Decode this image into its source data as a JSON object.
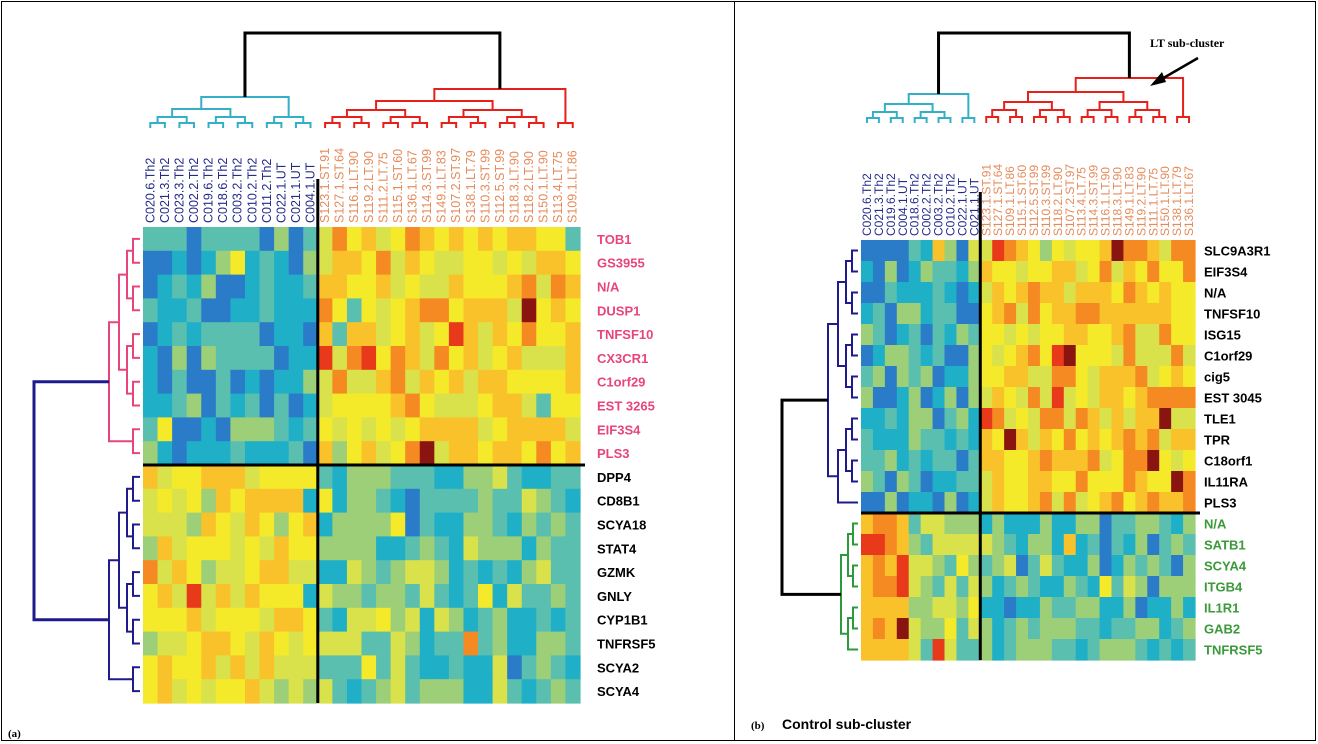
{
  "panels": {
    "a": {
      "letter": "(a)"
    },
    "b": {
      "letter": "(b)",
      "caption": "Control sub-cluster",
      "annotation": "LT sub-cluster"
    }
  },
  "colors": {
    "blue_dendro": "#1f1b8c",
    "cyan_dendro": "#33b0c8",
    "red_dendro": "#e8201a",
    "pink_dendro": "#e8457a",
    "green_dendro": "#2a9a3a",
    "control_label": "#232b8a",
    "lt_label": "#e58a5a",
    "pink_label": "#e8457a",
    "green_label": "#3a9a3a",
    "black_label": "#000000"
  },
  "chart_data": [
    {
      "type": "heatmap",
      "panel": "a",
      "columns_left": [
        "C020.6.Th2",
        "C021.3.Th2",
        "C023.3.Th2",
        "C002.2.Th2",
        "C019.6.Th2",
        "C018.6.Th2",
        "C003.2.Th2",
        "C010.2.Th2",
        "C011.2.Th2",
        "C022.1.UT",
        "C021.1.UT",
        "C004.1.UT"
      ],
      "columns_right": [
        "S123.1.ST.91",
        "S127.1.ST.64",
        "S116.1.LT.90",
        "S119.2.LT.90",
        "S111.2.LT.75",
        "S115.1.ST.60",
        "S136.1.LT.67",
        "S114.3.ST.99",
        "S149.1.LT.83",
        "S107.2.ST.97",
        "S138.1.LT.79",
        "S110.3.ST.99",
        "S112.5.ST.99",
        "S118.3.LT.90",
        "S118.2.LT.90",
        "S150.1.LT.90",
        "S113.4.LT.75",
        "S109.1.LT.86"
      ],
      "rows_top": [
        "TOB1",
        "GS3955",
        "N/A",
        "DUSP1",
        "TNFSF10",
        "CX3CR1",
        "C1orf29",
        "EST 3265",
        "EIF3S4",
        "PLS3"
      ],
      "rows_bottom": [
        "DPP4",
        "CD8B1",
        "SCYA18",
        "STAT4",
        "GZMK",
        "GNLY",
        "CYP1B1",
        "TNFRSF5",
        "SCYA2",
        "SCYA4"
      ],
      "color_scale": [
        "#2a7bc8",
        "#1fb0c8",
        "#5bbfb0",
        "#9ccf78",
        "#d9e24a",
        "#f5ea2a",
        "#f9c22a",
        "#f58a22",
        "#e83a1a",
        "#8a1410"
      ]
    },
    {
      "type": "heatmap",
      "panel": "b",
      "columns_left": [
        "C020.6.Th2",
        "C021.3.Th2",
        "C019.6.Th2",
        "C004.1.UT",
        "C018.6.Th2",
        "C002.2.Th2",
        "C003.2.Th2",
        "C010.2.Th2",
        "C022.1.UT",
        "C021.1.UT"
      ],
      "columns_right": [
        "S123.1.ST.91",
        "S127.1.ST.64",
        "S109.1.LT.86",
        "S115.1.ST.60",
        "S112.5.ST.99",
        "S110.3.ST.99",
        "S118.2.LT.90",
        "S107.2.ST.97",
        "S113.4.LT.75",
        "S114.3.ST.99",
        "S116.1.LT.90",
        "S118.3.LT.90",
        "S149.1.LT.83",
        "S119.2.LT.90",
        "S111.1.LT.75",
        "S150.1.LT.90",
        "S138.1.LT.79",
        "S136.1.LT.67"
      ],
      "rows_top": [
        "SLC9A3R1",
        "EIF3S4",
        "N/A",
        "TNFSF10",
        "ISG15",
        "C1orf29",
        "cig5",
        "EST 3045",
        "TLE1",
        "TPR",
        "C18orf1",
        "IL11RA",
        "PLS3"
      ],
      "rows_bottom": [
        "N/A",
        "SATB1",
        "SCYA4",
        "ITGB4",
        "IL1R1",
        "GAB2",
        "TNFRSF5"
      ],
      "color_scale": [
        "#2a7bc8",
        "#1fb0c8",
        "#5bbfb0",
        "#9ccf78",
        "#d9e24a",
        "#f5ea2a",
        "#f9c22a",
        "#f58a22",
        "#e83a1a",
        "#8a1410"
      ]
    }
  ]
}
